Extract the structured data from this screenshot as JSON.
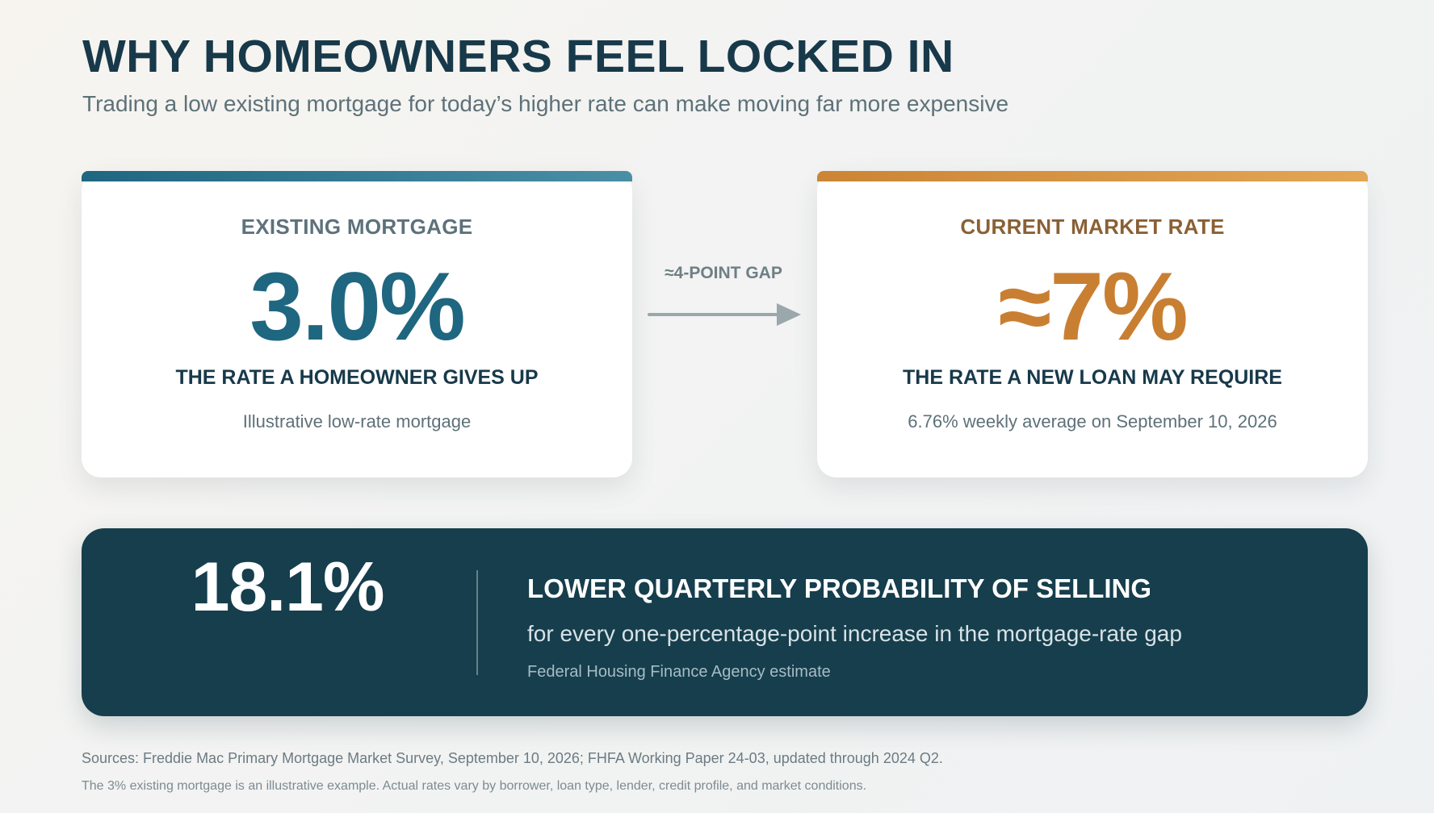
{
  "header": {
    "title": "WHY HOMEOWNERS FEEL LOCKED IN",
    "subtitle": "Trading a low existing mortgage for today’s higher rate can make moving far more expensive"
  },
  "existing_card": {
    "label": "EXISTING MORTGAGE",
    "value": "3.0%",
    "caption": "THE RATE A HOMEOWNER GIVES UP",
    "note": "Illustrative low-rate mortgage",
    "accent_color": "#1f6680"
  },
  "gap": {
    "label": "≈4-POINT GAP",
    "arrow_icon": "arrow-right-icon"
  },
  "market_card": {
    "label": "CURRENT MARKET RATE",
    "value": "≈7%",
    "caption": "THE RATE A NEW LOAN MAY REQUIRE",
    "note": "6.76% weekly average on September 10, 2026",
    "accent_color": "#c97f32"
  },
  "stat": {
    "value": "18.1%",
    "heading": "LOWER QUARTERLY PROBABILITY OF SELLING",
    "description": "for every one-percentage-point increase in the mortgage-rate gap",
    "source": "Federal Housing Finance Agency estimate",
    "background_color": "#163e4d"
  },
  "footer": {
    "sources": "Sources: Freddie Mac Primary Mortgage Market Survey, September 10, 2026; FHFA Working Paper 24-03, updated through 2024 Q2.",
    "disclaimer": "The 3% existing mortgage is an illustrative example. Actual rates vary by borrower, loan type, lender, credit profile, and market conditions."
  }
}
